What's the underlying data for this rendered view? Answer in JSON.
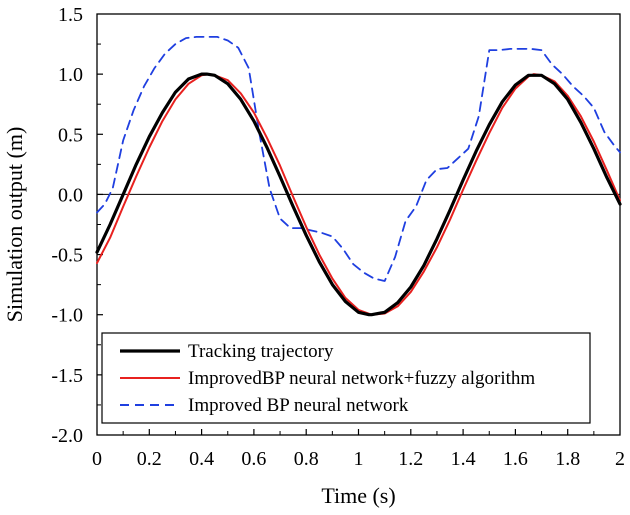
{
  "chart_data": {
    "type": "line",
    "title": "",
    "xlabel": "Time (s)",
    "ylabel": "Simulation output (m)",
    "xlim": [
      0,
      2
    ],
    "ylim": [
      -2.0,
      1.5
    ],
    "xticks": [
      0,
      0.2,
      0.4,
      0.6,
      0.8,
      1,
      1.2,
      1.4,
      1.6,
      1.8,
      2
    ],
    "xtick_labels": [
      "0",
      "0.2",
      "0.4",
      "0.6",
      "0.8",
      "1",
      "1.2",
      "1.4",
      "1.6",
      "1.8",
      "2"
    ],
    "yticks": [
      1.5,
      1.0,
      0.5,
      0.0,
      -0.5,
      -1.0,
      -1.5,
      -2.0
    ],
    "ytick_labels": [
      "1.5",
      "1.0",
      "0.5",
      "0.0",
      "-0.5",
      "-1.0",
      "-1.5",
      "-2.0"
    ],
    "grid": false,
    "zero_line": true,
    "legend_position": "bottom-left",
    "series": [
      {
        "name": "Tracking trajectory",
        "color": "#000000",
        "style": "solid",
        "x": [
          0,
          0.05,
          0.1,
          0.15,
          0.2,
          0.25,
          0.3,
          0.35,
          0.4,
          0.42,
          0.45,
          0.5,
          0.55,
          0.6,
          0.65,
          0.7,
          0.75,
          0.8,
          0.85,
          0.9,
          0.95,
          1.0,
          1.04,
          1.05,
          1.1,
          1.15,
          1.2,
          1.25,
          1.3,
          1.35,
          1.4,
          1.45,
          1.5,
          1.55,
          1.6,
          1.65,
          1.7,
          1.75,
          1.8,
          1.85,
          1.9,
          1.95,
          2.0
        ],
        "y": [
          -0.48,
          -0.25,
          0.0,
          0.25,
          0.48,
          0.68,
          0.85,
          0.96,
          1.0,
          1.0,
          0.99,
          0.92,
          0.79,
          0.61,
          0.39,
          0.15,
          -0.1,
          -0.34,
          -0.56,
          -0.75,
          -0.89,
          -0.98,
          -1.0,
          -1.0,
          -0.98,
          -0.9,
          -0.77,
          -0.59,
          -0.37,
          -0.13,
          0.12,
          0.36,
          0.58,
          0.77,
          0.91,
          0.99,
          0.99,
          0.92,
          0.79,
          0.6,
          0.38,
          0.14,
          -0.08
        ]
      },
      {
        "name": "ImprovedBP neural network+fuzzy algorithm",
        "color": "#e8211f",
        "style": "solid",
        "x": [
          0,
          0.05,
          0.1,
          0.15,
          0.2,
          0.25,
          0.3,
          0.35,
          0.4,
          0.43,
          0.45,
          0.5,
          0.55,
          0.6,
          0.65,
          0.7,
          0.75,
          0.8,
          0.85,
          0.9,
          0.95,
          1.0,
          1.05,
          1.1,
          1.15,
          1.2,
          1.25,
          1.3,
          1.35,
          1.4,
          1.45,
          1.5,
          1.55,
          1.6,
          1.65,
          1.67,
          1.7,
          1.75,
          1.8,
          1.85,
          1.9,
          1.95,
          2.0
        ],
        "y": [
          -0.57,
          -0.36,
          -0.1,
          0.15,
          0.39,
          0.61,
          0.79,
          0.92,
          0.99,
          1.0,
          0.99,
          0.95,
          0.84,
          0.68,
          0.47,
          0.24,
          -0.02,
          -0.27,
          -0.5,
          -0.7,
          -0.86,
          -0.96,
          -1.0,
          -0.99,
          -0.93,
          -0.81,
          -0.64,
          -0.44,
          -0.21,
          0.04,
          0.28,
          0.51,
          0.72,
          0.88,
          0.98,
          1.0,
          0.99,
          0.94,
          0.82,
          0.65,
          0.44,
          0.2,
          -0.05
        ]
      },
      {
        "name": "Improved BP neural network",
        "color": "#1f3fe0",
        "style": "dashed",
        "x": [
          0,
          0.03,
          0.06,
          0.1,
          0.14,
          0.18,
          0.22,
          0.26,
          0.3,
          0.34,
          0.38,
          0.42,
          0.46,
          0.5,
          0.54,
          0.58,
          0.62,
          0.66,
          0.7,
          0.74,
          0.78,
          0.82,
          0.86,
          0.9,
          0.94,
          0.98,
          1.02,
          1.06,
          1.1,
          1.14,
          1.18,
          1.22,
          1.26,
          1.3,
          1.34,
          1.38,
          1.42,
          1.46,
          1.5,
          1.54,
          1.58,
          1.62,
          1.66,
          1.7,
          1.74,
          1.78,
          1.82,
          1.86,
          1.9,
          1.94,
          1.98,
          2.0
        ],
        "y": [
          -0.15,
          -0.08,
          0.05,
          0.45,
          0.7,
          0.9,
          1.05,
          1.17,
          1.25,
          1.3,
          1.31,
          1.31,
          1.31,
          1.28,
          1.22,
          1.05,
          0.52,
          0.05,
          -0.2,
          -0.28,
          -0.28,
          -0.3,
          -0.32,
          -0.35,
          -0.45,
          -0.58,
          -0.65,
          -0.7,
          -0.72,
          -0.52,
          -0.22,
          -0.1,
          0.12,
          0.21,
          0.22,
          0.3,
          0.38,
          0.65,
          1.2,
          1.2,
          1.21,
          1.21,
          1.21,
          1.2,
          1.08,
          1.0,
          0.9,
          0.82,
          0.72,
          0.52,
          0.4,
          0.35
        ]
      }
    ]
  }
}
